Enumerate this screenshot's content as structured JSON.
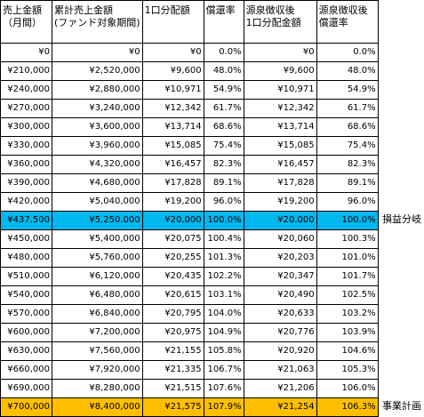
{
  "headers": [
    [
      "売上金額",
      "（月間）"
    ],
    [
      "累計売上金額",
      "(ファンド対象期間)"
    ],
    [
      "1口分配額",
      ""
    ],
    [
      "償還率",
      ""
    ],
    [
      "源泉徴収後",
      "1口分配金額"
    ],
    [
      "源泉徴収後",
      "償還率"
    ]
  ],
  "rows": [
    [
      "¥0",
      "¥0",
      "¥0",
      "0.0%",
      "¥0",
      "0.0%"
    ],
    [
      "¥210,000",
      "¥2,520,000",
      "¥9,600",
      "48.0%",
      "¥9,600",
      "48.0%"
    ],
    [
      "¥240,000",
      "¥2,880,000",
      "¥10,971",
      "54.9%",
      "¥10,971",
      "54.9%"
    ],
    [
      "¥270,000",
      "¥3,240,000",
      "¥12,342",
      "61.7%",
      "¥12,342",
      "61.7%"
    ],
    [
      "¥300,000",
      "¥3,600,000",
      "¥13,714",
      "68.6%",
      "¥13,714",
      "68.6%"
    ],
    [
      "¥330,000",
      "¥3,960,000",
      "¥15,085",
      "75.4%",
      "¥15,085",
      "75.4%"
    ],
    [
      "¥360,000",
      "¥4,320,000",
      "¥16,457",
      "82.3%",
      "¥16,457",
      "82.3%"
    ],
    [
      "¥390,000",
      "¥4,680,000",
      "¥17,828",
      "89.1%",
      "¥17,828",
      "89.1%"
    ],
    [
      "¥420,000",
      "¥5,040,000",
      "¥19,200",
      "96.0%",
      "¥19,200",
      "96.0%"
    ],
    [
      "¥437,500",
      "¥5,250,000",
      "¥20,000",
      "100.0%",
      "¥20,000",
      "100.0%"
    ],
    [
      "¥450,000",
      "¥5,400,000",
      "¥20,075",
      "100.4%",
      "¥20,060",
      "100.3%"
    ],
    [
      "¥480,000",
      "¥5,760,000",
      "¥20,255",
      "101.3%",
      "¥20,203",
      "101.0%"
    ],
    [
      "¥510,000",
      "¥6,120,000",
      "¥20,435",
      "102.2%",
      "¥20,347",
      "101.7%"
    ],
    [
      "¥540,000",
      "¥6,480,000",
      "¥20,615",
      "103.1%",
      "¥20,490",
      "102.5%"
    ],
    [
      "¥570,000",
      "¥6,840,000",
      "¥20,795",
      "104.0%",
      "¥20,633",
      "103.2%"
    ],
    [
      "¥600,000",
      "¥7,200,000",
      "¥20,975",
      "104.9%",
      "¥20,776",
      "103.9%"
    ],
    [
      "¥630,000",
      "¥7,560,000",
      "¥21,155",
      "105.8%",
      "¥20,920",
      "104.6%"
    ],
    [
      "¥660,000",
      "¥7,920,000",
      "¥21,335",
      "106.7%",
      "¥21,063",
      "105.3%"
    ],
    [
      "¥690,000",
      "¥8,280,000",
      "¥21,515",
      "107.6%",
      "¥21,206",
      "106.0%"
    ],
    [
      "¥700,000",
      "¥8,400,000",
      "¥21,575",
      "107.9%",
      "¥21,254",
      "106.3%"
    ]
  ],
  "highlights": {
    "blue_row": 9,
    "orange_row": 19,
    "blue_color": "#00b8ef",
    "orange_color": "#ffbf00"
  },
  "side_labels": {
    "breakeven": "損益分岐",
    "business_plan": "事業計画"
  }
}
